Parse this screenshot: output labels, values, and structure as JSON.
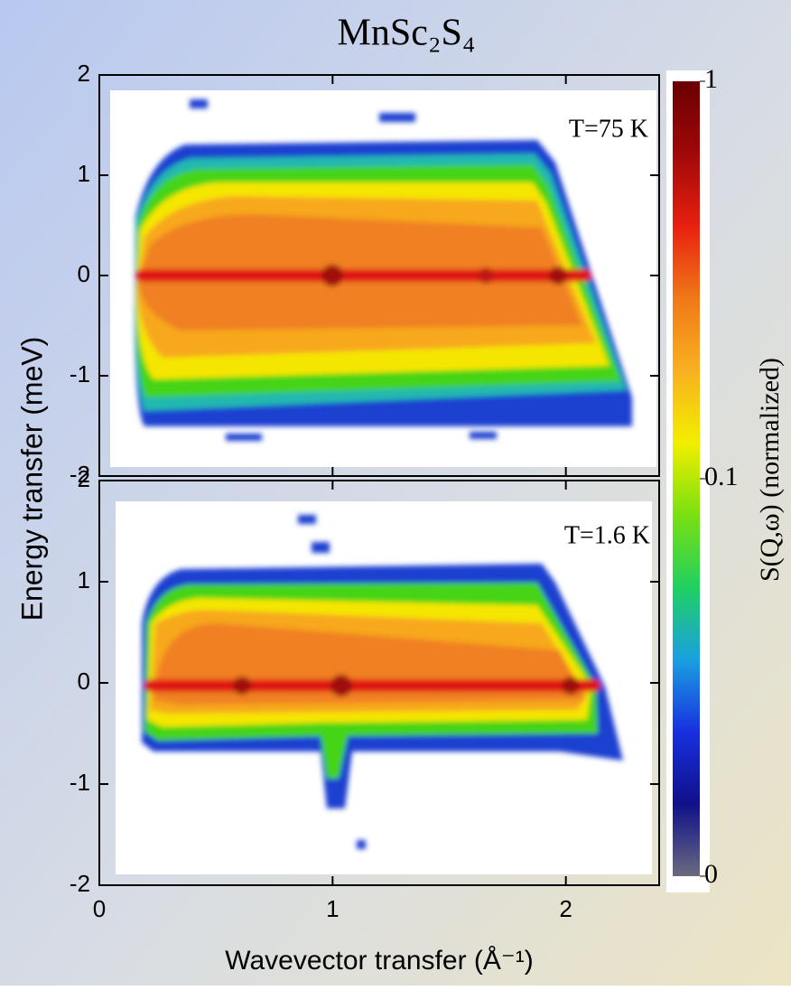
{
  "chart_data": {
    "type": "heatmap",
    "title": "MnSc₂S₄",
    "xlabel": "Wavevector transfer (Å⁻¹)",
    "ylabel": "Energy transfer (meV)",
    "xlim": [
      0,
      2.4
    ],
    "xticks": [
      0,
      1,
      2
    ],
    "panels": [
      {
        "annotation": "T=75 K",
        "ylim": [
          -2,
          2
        ],
        "yticks": [
          -2,
          -1,
          0,
          1,
          2
        ]
      },
      {
        "annotation": "T=1.6 K",
        "ylim": [
          -2,
          2
        ],
        "yticks": [
          -2,
          -1,
          0,
          1,
          2
        ]
      }
    ],
    "colorbar": {
      "label": "S(Q,ω) (normalized)",
      "scale": "log",
      "ticks": [
        0,
        0.1,
        1
      ],
      "colormap": [
        "#6a6a80",
        "#10108a",
        "#1830e0",
        "#1aa0e0",
        "#20d060",
        "#7ae010",
        "#f2ee00",
        "#f8b020",
        "#f07818",
        "#e82010",
        "#a00808",
        "#6a0000"
      ]
    }
  }
}
